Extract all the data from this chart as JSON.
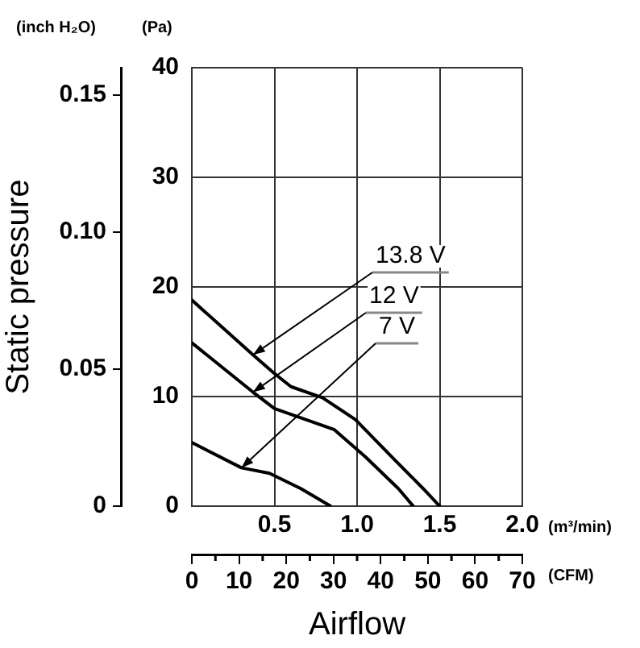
{
  "chart_data": {
    "type": "line",
    "xlabel": "Airflow",
    "ylabel": "Static pressure",
    "annotations": [
      "(inch H₂O)",
      "(Pa)",
      "(m³/min)",
      "(CFM)"
    ],
    "xlim": [
      0,
      2
    ],
    "xticks": [
      {
        "value": 0,
        "label": null
      },
      0.5,
      {
        "value": 1,
        "label": "1.0"
      },
      1.5,
      {
        "value": 2,
        "label": "2.0"
      }
    ],
    "ylim": [
      0,
      0.16
    ],
    "yticks": [
      0,
      0.05,
      {
        "value": 0.1,
        "label": "0.10"
      },
      0.15
    ],
    "y2lim": [
      0,
      40
    ],
    "y2ticks": [
      0,
      10,
      20,
      30,
      40
    ],
    "x2lim": [
      0,
      70
    ],
    "x2ticks": [
      0,
      10,
      20,
      30,
      40,
      50,
      60,
      70
    ],
    "grid": true,
    "legend": false,
    "marker": "none",
    "line_style": "solid",
    "series": [
      {
        "name": "13.8 V",
        "color": "#000000",
        "axis": "y2",
        "x": [
          0,
          0.37,
          0.5,
          0.6,
          0.79,
          0.99,
          1.21,
          1.4,
          1.5
        ],
        "values": [
          18.8,
          13.8,
          12.1,
          10.9,
          9.9,
          7.9,
          4.5,
          1.6,
          0
        ]
      },
      {
        "name": "12 V",
        "color": "#000000",
        "axis": "y2",
        "x": [
          0,
          0.37,
          0.5,
          0.69,
          0.86,
          1.05,
          1.25,
          1.34
        ],
        "values": [
          14.9,
          10.4,
          8.9,
          7.9,
          7.0,
          4.5,
          1.6,
          0
        ]
      },
      {
        "name": "7 V",
        "color": "#000000",
        "axis": "y2",
        "x": [
          0,
          0.3,
          0.47,
          0.66,
          0.84
        ],
        "values": [
          5.8,
          3.5,
          3.0,
          1.6,
          0
        ]
      }
    ]
  }
}
